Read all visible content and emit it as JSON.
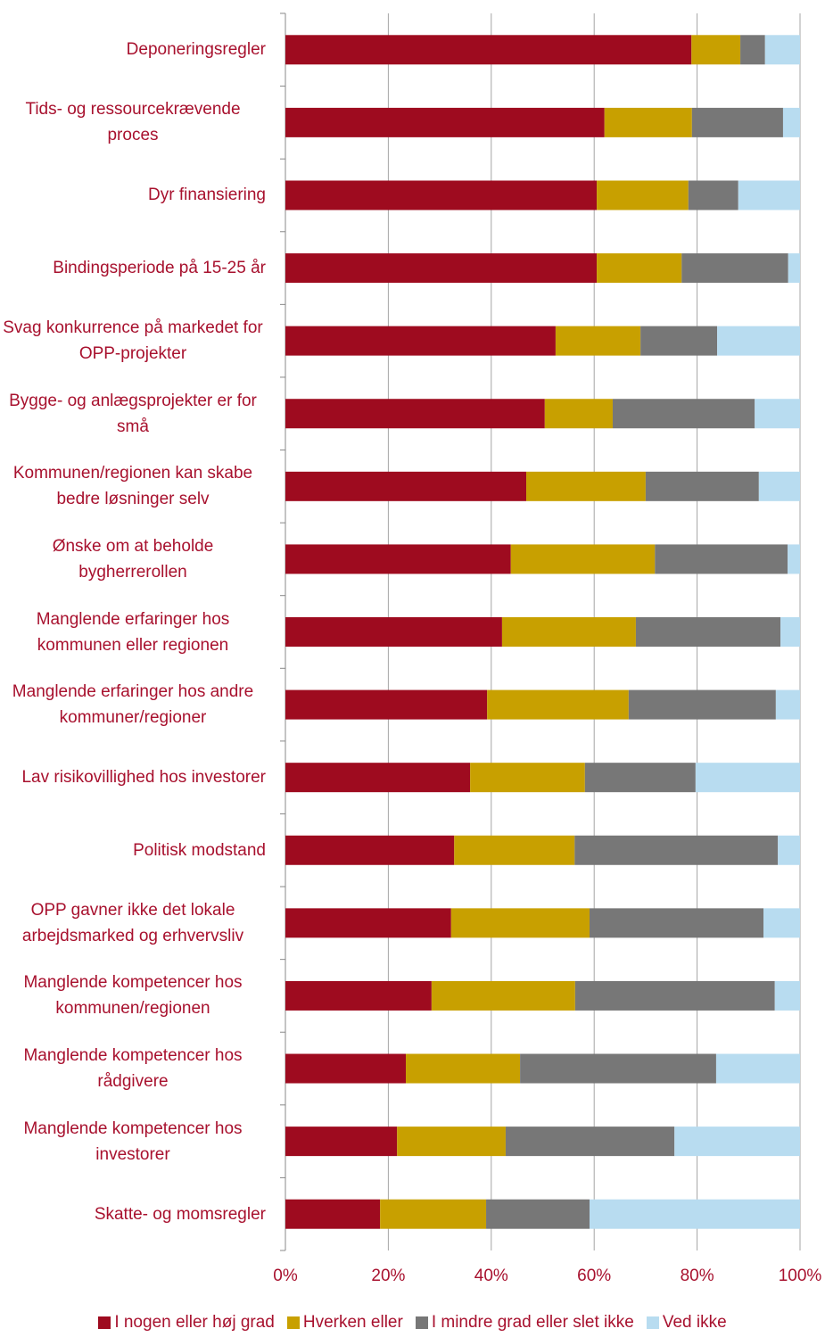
{
  "chart_data": {
    "type": "stacked-bar-horizontal",
    "categories": [
      "Deponeringsregler",
      "Tids- og ressourcekrævende proces",
      "Dyr finansiering",
      "Bindingsperiode på 15-25 år",
      "Svag konkurrence på markedet for OPP-projekter",
      "Bygge- og anlægsprojekter er for små",
      "Kommunen/regionen kan skabe bedre løsninger selv",
      "Ønske om at beholde bygherrerollen",
      "Manglende erfaringer hos kommunen eller regionen",
      "Manglende erfaringer hos andre kommuner/regioner",
      "Lav risikovillighed hos investorer",
      "Politisk modstand",
      "OPP gavner ikke det lokale arbejdsmarked og erhvervsliv",
      "Manglende kompetencer hos kommunen/regionen",
      "Manglende kompetencer hos rådgivere",
      "Manglende kompetencer hos investorer",
      "Skatte- og momsregler"
    ],
    "series": [
      {
        "name": "I nogen eller høj grad",
        "color": "#9e0b1f",
        "values": [
          78.9,
          62.0,
          60.5,
          60.5,
          52.5,
          50.4,
          46.8,
          43.8,
          42.1,
          39.2,
          35.9,
          32.8,
          32.2,
          28.4,
          23.4,
          21.7,
          18.4
        ]
      },
      {
        "name": "Hverken eller",
        "color": "#c8a000",
        "values": [
          9.5,
          17.0,
          17.8,
          16.5,
          16.5,
          13.2,
          23.2,
          28.0,
          26.0,
          27.5,
          22.3,
          23.4,
          26.9,
          27.9,
          22.2,
          21.1,
          20.6
        ]
      },
      {
        "name": "I mindre grad eller slet ikke",
        "color": "#777777",
        "values": [
          4.8,
          17.7,
          9.7,
          20.7,
          14.9,
          27.6,
          22.0,
          25.8,
          28.1,
          28.6,
          21.5,
          39.5,
          33.8,
          38.8,
          38.1,
          32.8,
          20.1
        ]
      },
      {
        "name": "Ved ikke",
        "color": "#b8dcf0",
        "values": [
          6.8,
          3.3,
          12.0,
          2.3,
          16.1,
          8.8,
          8.0,
          2.4,
          3.8,
          4.7,
          20.3,
          4.3,
          7.1,
          4.9,
          16.3,
          24.4,
          40.9
        ]
      }
    ],
    "xlim": [
      0,
      100
    ],
    "xticks": [
      {
        "value": 0,
        "label": "0%"
      },
      {
        "value": 20,
        "label": "20%"
      },
      {
        "value": 40,
        "label": "40%"
      },
      {
        "value": 60,
        "label": "60%"
      },
      {
        "value": 80,
        "label": "80%"
      },
      {
        "value": 100,
        "label": "100%"
      }
    ],
    "grid": true
  }
}
